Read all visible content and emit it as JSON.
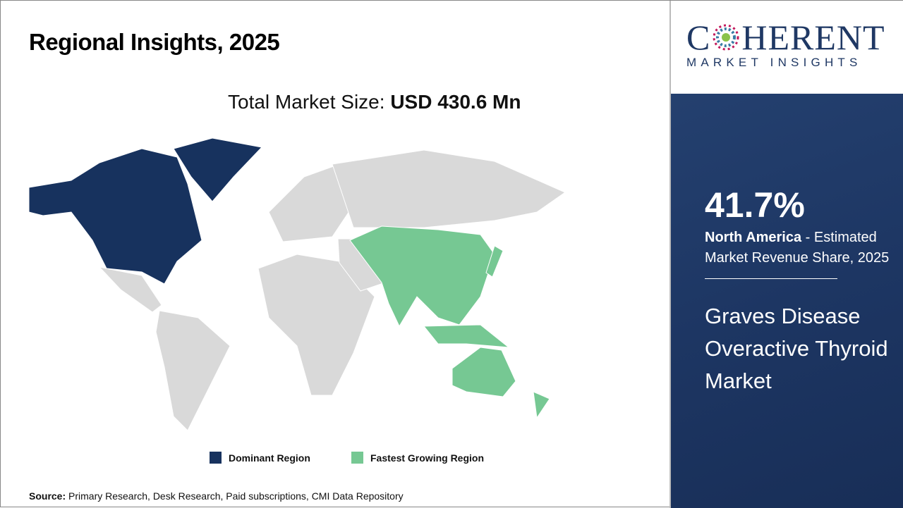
{
  "header": {
    "title": "Regional Insights, 2025"
  },
  "summary": {
    "label": "Total Market Size: ",
    "value": "USD 430.6 Mn"
  },
  "map": {
    "colors": {
      "dominant": "#17325e",
      "fastest": "#76c893",
      "other": "#d9d9d9"
    },
    "dominant_region": "North America",
    "fastest_growing_region": "Asia Pacific"
  },
  "legend": [
    {
      "label": "Dominant Region",
      "color": "#17325e"
    },
    {
      "label": "Fastest Growing Region",
      "color": "#76c893"
    }
  ],
  "source": {
    "label": "Source:",
    "text": " Primary Research, Desk Research, Paid subscriptions, CMI Data Repository"
  },
  "logo": {
    "line1_a": "C",
    "line1_b": "HERENT",
    "line2": "MARKET INSIGHTS"
  },
  "panel": {
    "percent": "41.7%",
    "region": "North America",
    "desc": " - Estimated Market Revenue Share, 2025",
    "market_name": "Graves Disease Overactive Thyroid Market"
  }
}
